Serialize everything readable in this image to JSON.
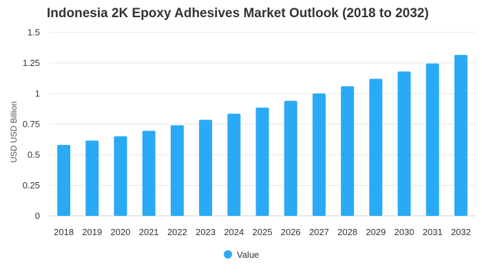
{
  "chart_data": {
    "type": "bar",
    "title": "Indonesia 2K Epoxy Adhesives Market Outlook (2018 to 2032)",
    "xlabel": "",
    "ylabel": "USD USD Billion",
    "categories": [
      "2018",
      "2019",
      "2020",
      "2021",
      "2022",
      "2023",
      "2024",
      "2025",
      "2026",
      "2027",
      "2028",
      "2029",
      "2030",
      "2031",
      "2032"
    ],
    "series": [
      {
        "name": "Value",
        "color": "#2aaaf5",
        "values": [
          0.58,
          0.615,
          0.65,
          0.695,
          0.74,
          0.785,
          0.835,
          0.885,
          0.94,
          1.0,
          1.06,
          1.12,
          1.18,
          1.245,
          1.315
        ]
      }
    ],
    "ylim": [
      0,
      1.5
    ],
    "yticks": [
      0,
      0.25,
      0.5,
      0.75,
      1,
      1.25,
      1.5
    ],
    "ytick_labels": [
      "0",
      "0.25",
      "0.5",
      "0.75",
      "1",
      "1.25",
      "1.5"
    ],
    "grid": true,
    "legend_position": "bottom-center"
  }
}
